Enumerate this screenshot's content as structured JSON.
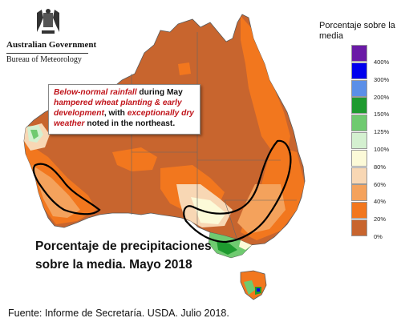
{
  "logo": {
    "org": "Australian Government",
    "bureau": "Bureau of Meteorology",
    "icon": "coat-of-arms-icon"
  },
  "annotation": {
    "part1": "Below-normal rainfall",
    "part2": " during May ",
    "part3": "hampered wheat planting & early development",
    "part4": ", with ",
    "part5": "exceptionally dry weather",
    "part6": " noted in the northeast."
  },
  "map_title": "Porcentaje de precipitaciones sobre la media. Mayo 2018",
  "source": "Fuente: Informe de Secretaría. USDA. Julio 2018.",
  "legend": {
    "title": "Porcentaje sobre la media",
    "labels": [
      "400%",
      "300%",
      "200%",
      "150%",
      "125%",
      "100%",
      "80%",
      "60%",
      "40%",
      "20%",
      "0%"
    ],
    "colors": [
      "#6a1aa6",
      "#0000ee",
      "#5b8fe8",
      "#1e9a2f",
      "#6fca70",
      "#d4f0d0",
      "#fcfad8",
      "#f8d7b4",
      "#f4a25c",
      "#f2771e",
      "#c8652e"
    ]
  },
  "map_colors": {
    "very_dry": "#c8652e",
    "dry": "#f2771e",
    "moderate": "#f4a25c",
    "light": "#f8d7b4",
    "normal": "#fcfad8",
    "wet": "#d4f0d0",
    "very_wet": "#6fca70",
    "extra_wet": "#1e9a2f",
    "ocean": "#ffffff"
  }
}
